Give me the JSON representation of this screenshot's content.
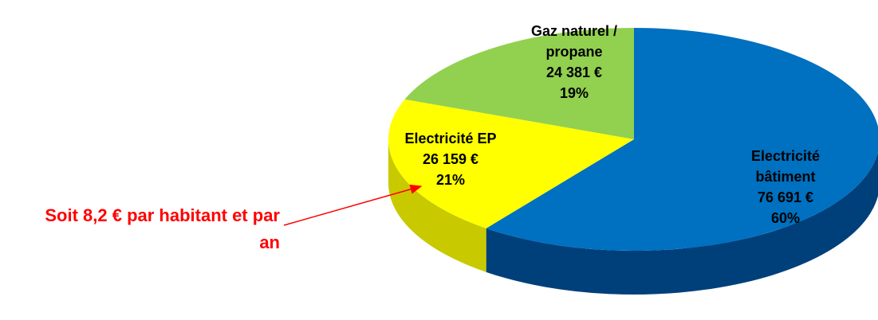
{
  "chart_data": {
    "type": "pie3d",
    "categories": [
      "Electricité bâtiment",
      "Electricité EP",
      "Gaz naturel / propane"
    ],
    "values": [
      76691,
      26159,
      24381
    ],
    "value_labels": [
      "76 691 €",
      "26 159 €",
      "24 381 €"
    ],
    "percent_labels": [
      "60%",
      "21%",
      "19%"
    ],
    "colors": [
      "#0070c0",
      "#ffff00",
      "#92d050"
    ],
    "side_colors": [
      "#00407a",
      "#c9c900",
      "#6a9a3a"
    ],
    "annotation": "Soit 8,2 € par habitant et par an",
    "annotation_color": "#ff0000"
  }
}
